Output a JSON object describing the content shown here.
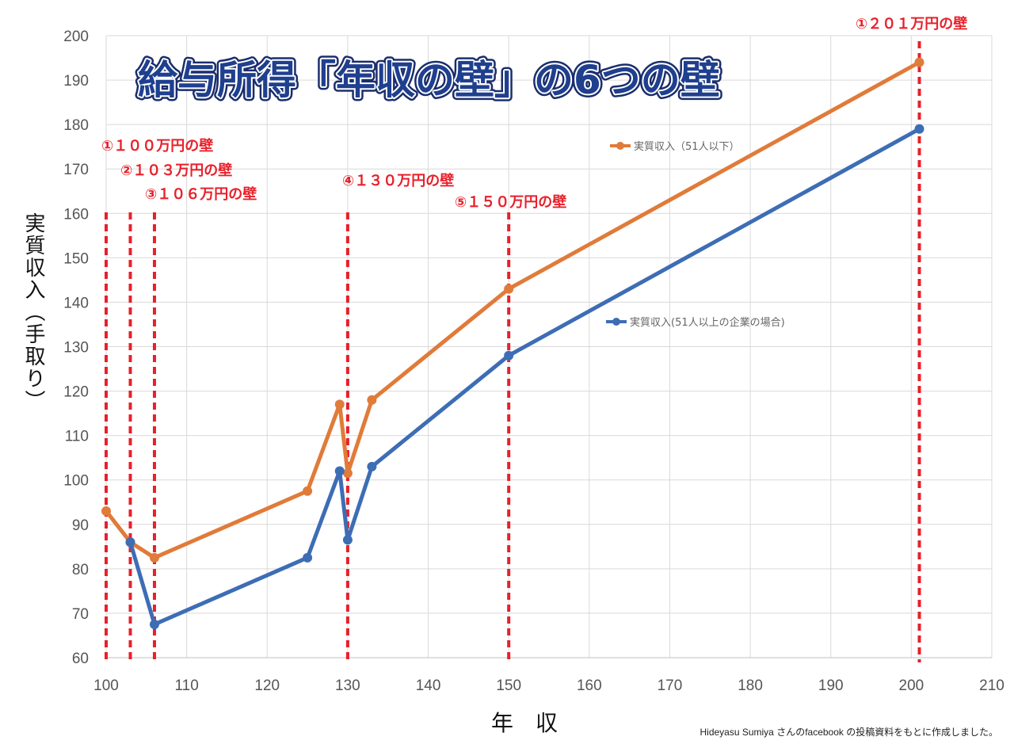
{
  "chart_data": {
    "type": "line",
    "title": "給与所得「年収の壁」の6つの壁",
    "xlabel": "年　収",
    "ylabel": "実質収入（手取り）",
    "xlim": [
      100,
      210
    ],
    "ylim": [
      60,
      200
    ],
    "xticks": [
      "100",
      "110",
      "120",
      "130",
      "140",
      "150",
      "160",
      "170",
      "180",
      "190",
      "200",
      "210"
    ],
    "yticks": [
      "60",
      "70",
      "80",
      "90",
      "100",
      "110",
      "120",
      "130",
      "140",
      "150",
      "160",
      "170",
      "180",
      "190",
      "200"
    ],
    "grid": true,
    "series": [
      {
        "name": "実質収入（51人以下）",
        "color": "#e07b39",
        "x": [
          100,
          103,
          106,
          125,
          129,
          130,
          133,
          150,
          201
        ],
        "y": [
          93,
          86,
          82.5,
          97.5,
          117,
          101.5,
          118,
          143,
          194
        ]
      },
      {
        "name": "実質収入(51人以上の企業の場合)",
        "color": "#3d6db5",
        "x": [
          103,
          106,
          125,
          129,
          130,
          133,
          150,
          201
        ],
        "y": [
          86,
          67.5,
          82.5,
          102,
          86.5,
          103,
          128,
          179
        ]
      }
    ],
    "walls": [
      {
        "x": 100,
        "label": "①１００万円の壁"
      },
      {
        "x": 103,
        "label": "②１０３万円の壁"
      },
      {
        "x": 106,
        "label": "③１０６万円の壁"
      },
      {
        "x": 130,
        "label": "④１３０万円の壁"
      },
      {
        "x": 150,
        "label": "⑤１５０万円の壁"
      },
      {
        "x": 201,
        "label": "①２０１万円の壁"
      }
    ],
    "wall_color": "#e8202a"
  },
  "credit": "Hideyasu Sumiya さんのfacebook の投稿資料をもとに作成しました。"
}
